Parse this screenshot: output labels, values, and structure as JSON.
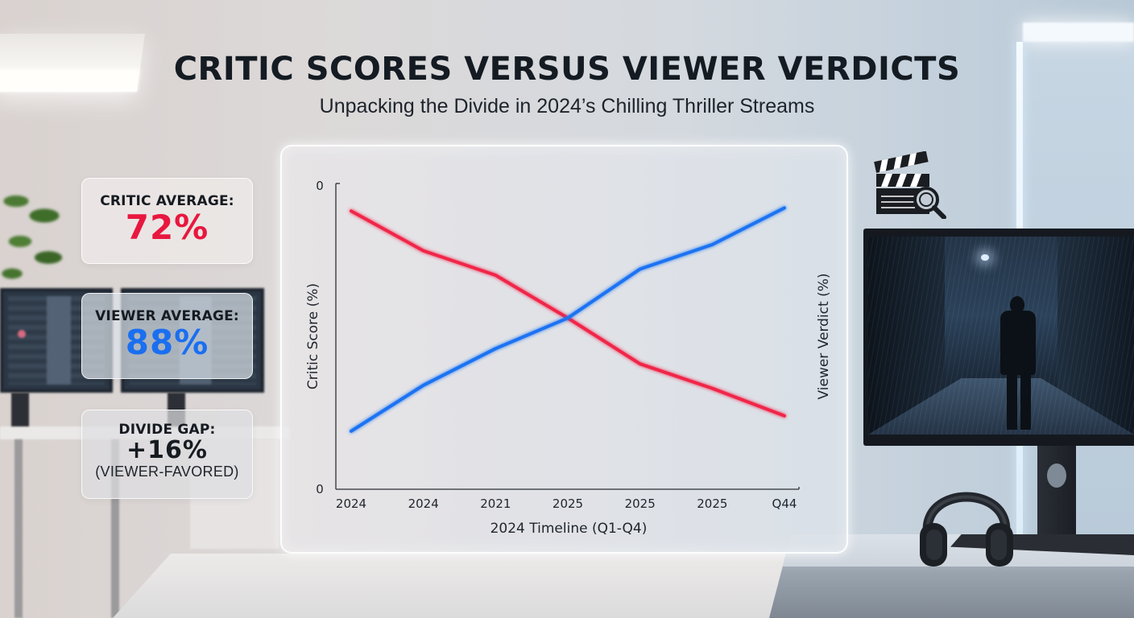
{
  "header": {
    "title": "CRITIC SCORES VERSUS VIEWER VERDICTS",
    "subtitle": "Unpacking the Divide in 2024’s Chilling Thriller Streams"
  },
  "stats": {
    "critic": {
      "label": "CRITIC AVERAGE:",
      "value": "72%",
      "color": "#e8173f"
    },
    "viewer": {
      "label": "VIEWER AVERAGE:",
      "value": "88%",
      "color": "#1a6ff0"
    },
    "gap": {
      "label": "DIVIDE GAP:",
      "value": "+16%",
      "note": "(VIEWER-FAVORED)"
    }
  },
  "icons": {
    "clapper": "clapperboard-search-icon",
    "headphones": "headphones-icon"
  },
  "chart_data": {
    "type": "line",
    "title": "",
    "xlabel": "2024 Timeline (Q1-Q4)",
    "ylabel": "Critic Score (%)",
    "y2label": "Viewer Verdict (%)",
    "categories": [
      "2024",
      "2024",
      "2021",
      "2025",
      "2025",
      "2025",
      "Q44"
    ],
    "y_ticks": [
      "0",
      "0"
    ],
    "ylim": [
      0,
      100
    ],
    "grid": false,
    "legend": "none",
    "series": [
      {
        "name": "Critic Score",
        "color": "#f0284a",
        "values": [
          91,
          78,
          70,
          56,
          41,
          33,
          24
        ]
      },
      {
        "name": "Viewer Verdict",
        "color": "#1f73f2",
        "values": [
          19,
          34,
          46,
          56,
          72,
          80,
          92
        ]
      }
    ]
  }
}
